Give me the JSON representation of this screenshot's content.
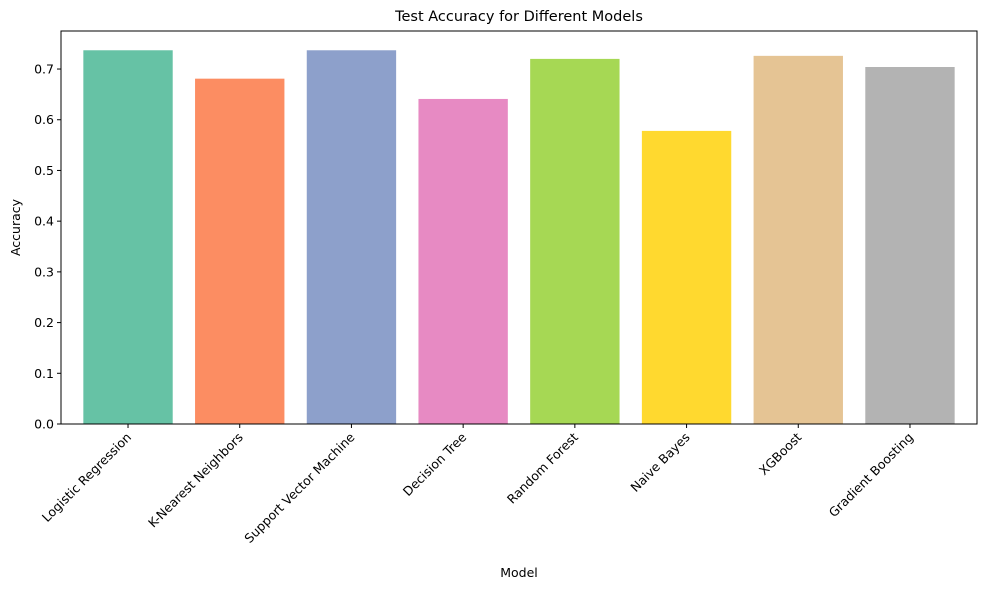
{
  "chart_data": {
    "type": "bar",
    "title": "Test Accuracy for Different Models",
    "xlabel": "Model",
    "ylabel": "Accuracy",
    "categories": [
      "Logistic Regression",
      "K-Nearest Neighbors",
      "Support Vector Machine",
      "Decision Tree",
      "Random Forest",
      "Naive Bayes",
      "XGBoost",
      "Gradient Boosting"
    ],
    "values": [
      0.737,
      0.681,
      0.737,
      0.641,
      0.72,
      0.578,
      0.726,
      0.704
    ],
    "colors": [
      "#66c2a5",
      "#fc8d62",
      "#8da0cb",
      "#e78ac3",
      "#a6d854",
      "#ffd92f",
      "#e5c494",
      "#b3b3b3"
    ],
    "ylim": [
      0,
      0.775
    ],
    "yticks": [
      0.0,
      0.1,
      0.2,
      0.3,
      0.4,
      0.5,
      0.6,
      0.7
    ],
    "grid": false,
    "legend": "none"
  }
}
